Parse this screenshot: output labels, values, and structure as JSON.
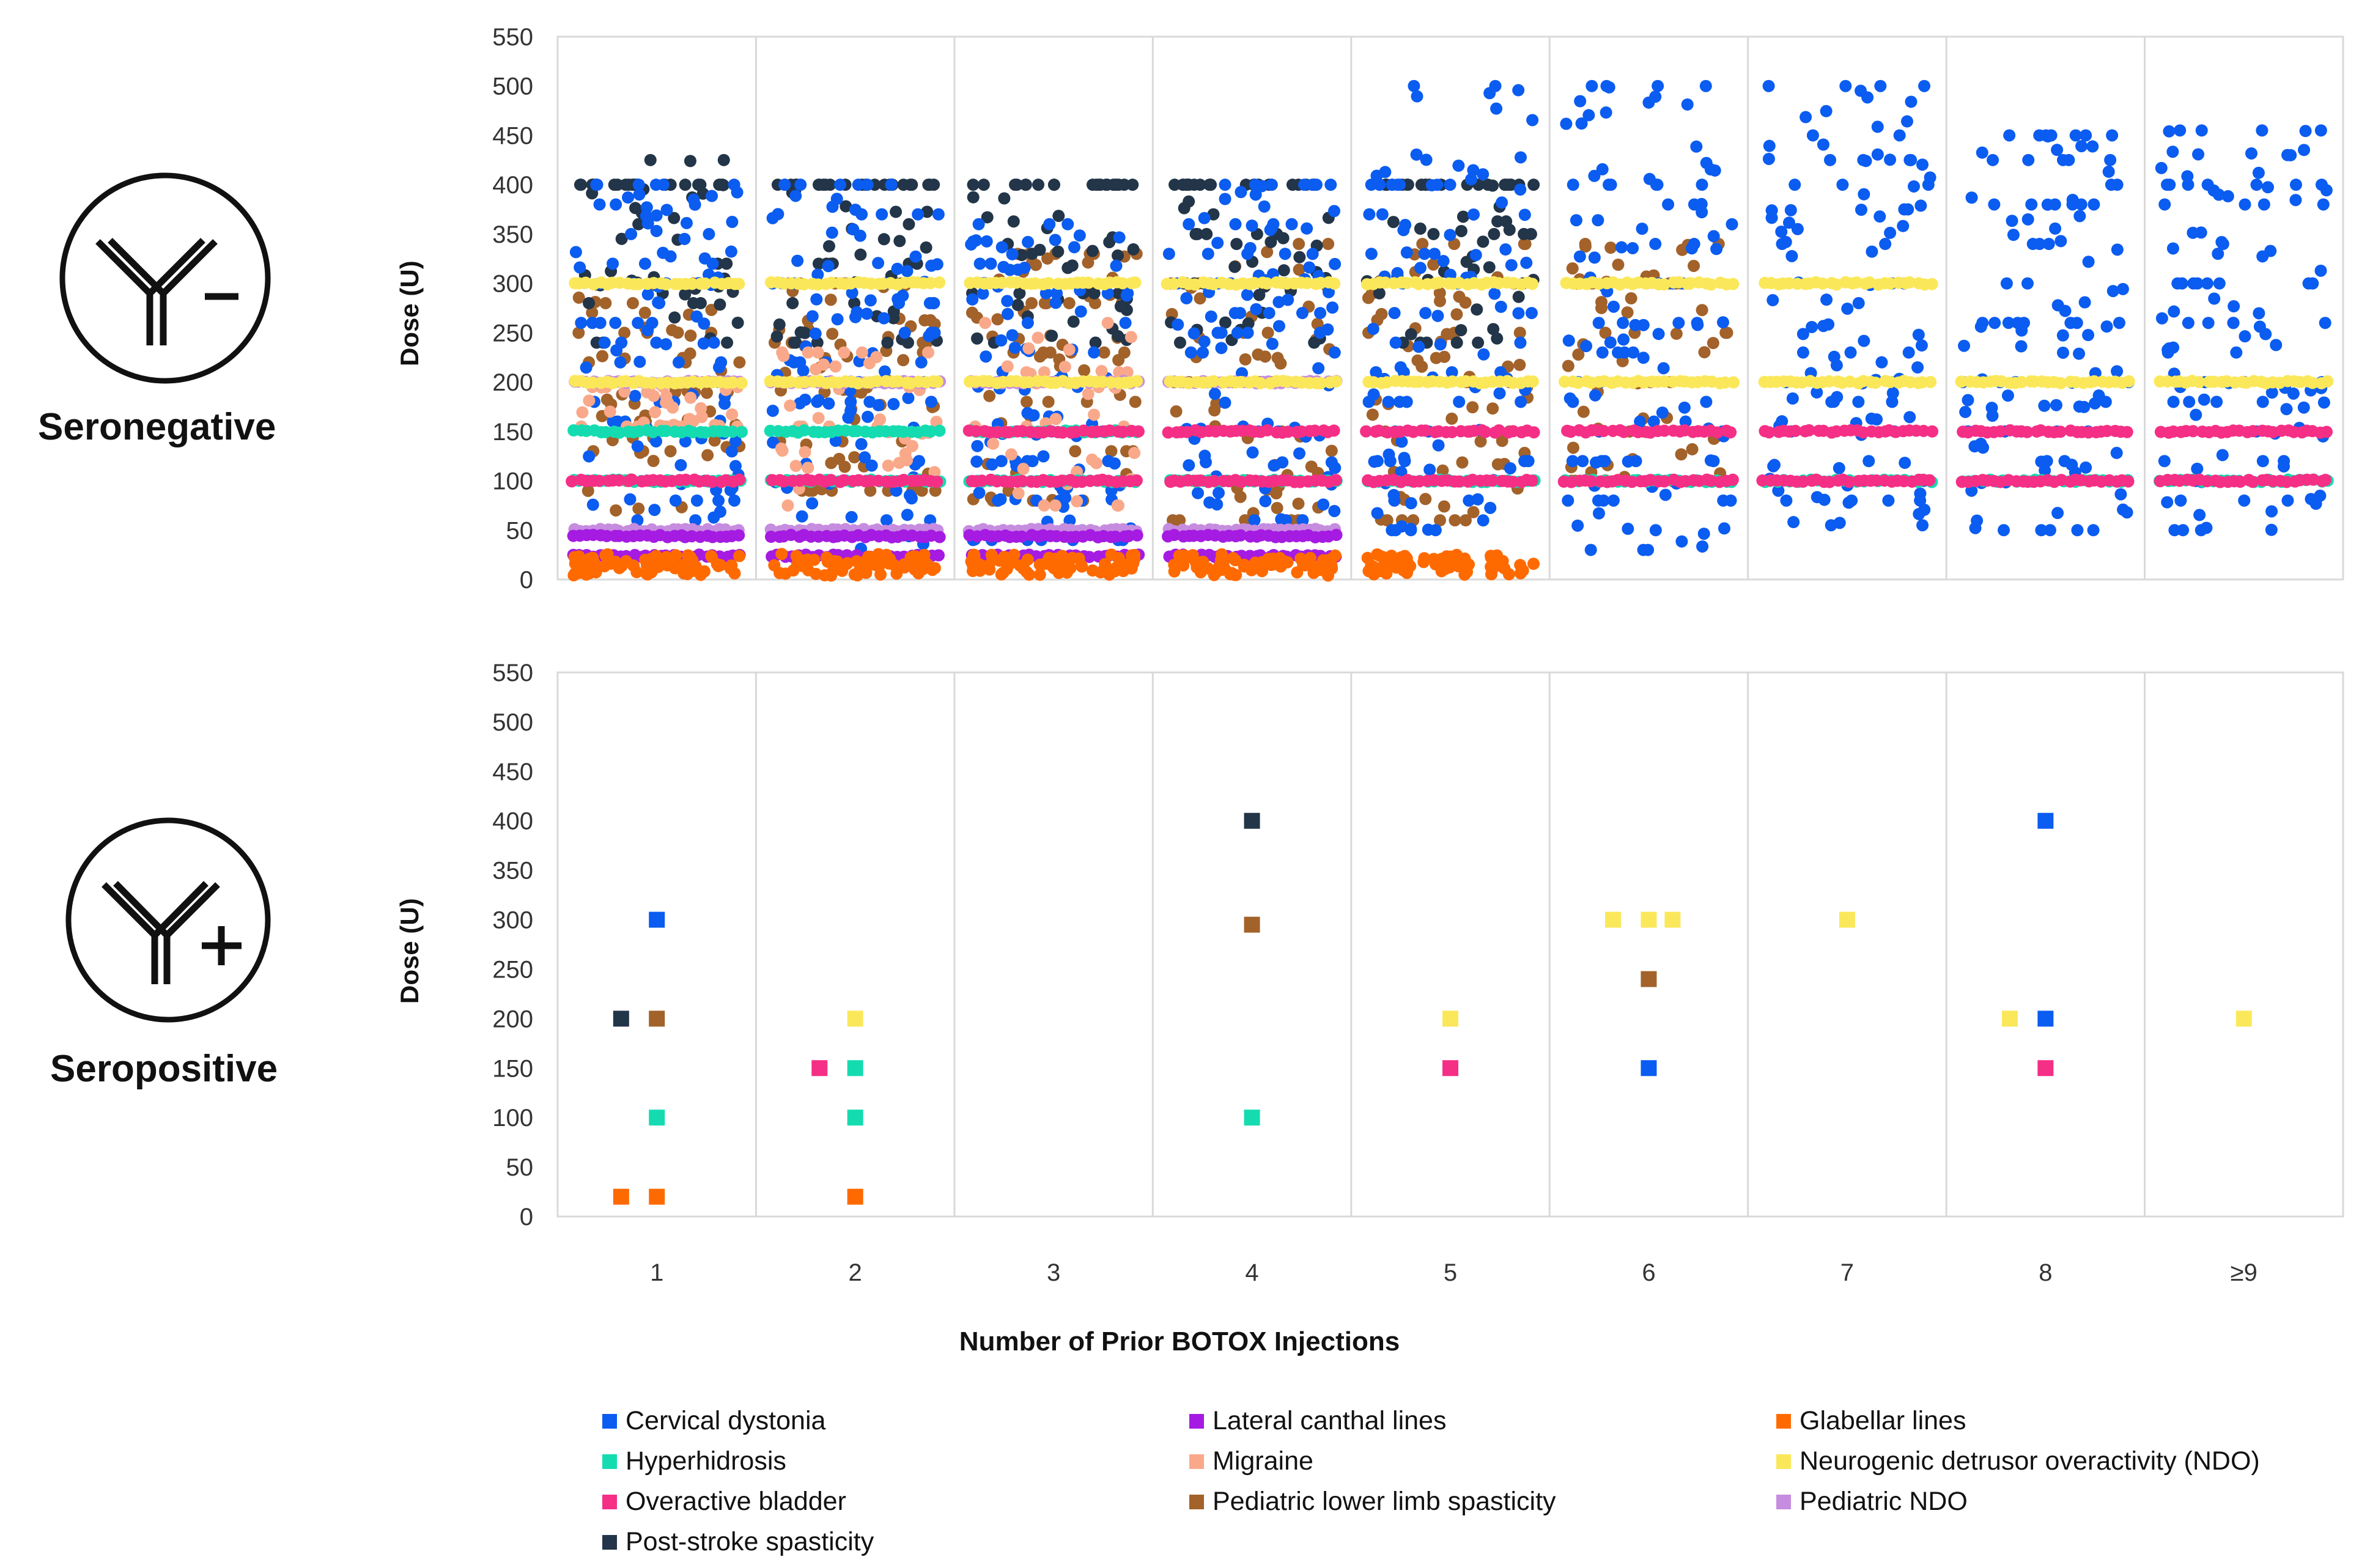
{
  "chart_data": {
    "type": "scatter",
    "xlabel": "Number of Prior BOTOX Injections",
    "ylabel": "Dose (U)",
    "categories": [
      "1",
      "2",
      "3",
      "4",
      "5",
      "6",
      "7",
      "8",
      "≥9"
    ],
    "ylim": [
      0,
      550
    ],
    "yticks": [
      0,
      50,
      100,
      150,
      200,
      250,
      300,
      350,
      400,
      450,
      500,
      550
    ],
    "colors": {
      "Cervical dystonia": "#0b5cf0",
      "Lateral canthal lines": "#a51be2",
      "Glabellar lines": "#ff6a00",
      "Hyperhidrosis": "#14dcb0",
      "Migraine": "#f9a98a",
      "Neurogenic detrusor overactivity (NDO)": "#fbe85a",
      "Overactive bladder": "#f52f85",
      "Pediatric lower limb spasticity": "#a2622a",
      "Pediatric NDO": "#c68cdf",
      "Post-stroke spasticity": "#233548"
    },
    "panels": [
      {
        "name": "Seronegative",
        "marker": "circle",
        "note": "Dense cloud of individual patient doses per condition; summarized as representative dose bands",
        "series": [
          {
            "name": "Cervical dystonia",
            "points": [
              {
                "x": "1",
                "doses": [
                  60,
                  80,
                  100,
                  120,
                  140,
                  160,
                  180,
                  200,
                  220,
                  240,
                  260,
                  280,
                  300,
                  320,
                  350,
                  380,
                  400
                ]
              },
              {
                "x": "2",
                "doses": [
                  30,
                  60,
                  90,
                  120,
                  150,
                  180,
                  200,
                  220,
                  250,
                  280,
                  300,
                  340,
                  370,
                  400
                ]
              },
              {
                "x": "3",
                "doses": [
                  40,
                  80,
                  120,
                  150,
                  180,
                  200,
                  230,
                  260,
                  290,
                  320,
                  360
                ]
              },
              {
                "x": "4",
                "doses": [
                  60,
                  100,
                  150,
                  200,
                  230,
                  250,
                  270,
                  300,
                  330,
                  360,
                  400
                ]
              },
              {
                "x": "5",
                "doses": [
                  50,
                  80,
                  120,
                  150,
                  180,
                  210,
                  240,
                  270,
                  300,
                  330,
                  370,
                  400,
                  500
                ]
              },
              {
                "x": "6",
                "doses": [
                  30,
                  50,
                  80,
                  120,
                  150,
                  160,
                  180,
                  200,
                  230,
                  260,
                  300,
                  340,
                  380,
                  400,
                  500
                ]
              },
              {
                "x": "7",
                "doses": [
                  55,
                  80,
                  120,
                  150,
                  180,
                  200,
                  230,
                  260,
                  300,
                  340,
                  375,
                  400,
                  425,
                  450,
                  500
                ]
              },
              {
                "x": "8",
                "doses": [
                  50,
                  80,
                  120,
                  150,
                  180,
                  200,
                  230,
                  260,
                  300,
                  340,
                  380,
                  400,
                  425,
                  450
                ]
              },
              {
                "x": "≥9",
                "doses": [
                  50,
                  80,
                  120,
                  150,
                  180,
                  200,
                  230,
                  260,
                  300,
                  340,
                  380,
                  400,
                  455
                ]
              }
            ]
          },
          {
            "name": "Lateral canthal lines",
            "points": [
              {
                "x": "1",
                "doses": [
                  24,
                  44
                ]
              },
              {
                "x": "2",
                "doses": [
                  24,
                  44
                ]
              },
              {
                "x": "3",
                "doses": [
                  24,
                  44
                ]
              },
              {
                "x": "4",
                "doses": [
                  24,
                  44
                ]
              }
            ]
          },
          {
            "name": "Glabellar lines",
            "points": [
              {
                "x": "1",
                "doses": [
                  10,
                  20
                ]
              },
              {
                "x": "2",
                "doses": [
                  10,
                  20
                ]
              },
              {
                "x": "3",
                "doses": [
                  10,
                  20
                ]
              },
              {
                "x": "4",
                "doses": [
                  10,
                  20
                ]
              },
              {
                "x": "5",
                "doses": [
                  10,
                  20
                ]
              }
            ]
          },
          {
            "name": "Hyperhidrosis",
            "points": [
              {
                "x": "1",
                "doses": [
                  100,
                  150
                ]
              },
              {
                "x": "2",
                "doses": [
                  100,
                  150
                ]
              },
              {
                "x": "3",
                "doses": [
                  100,
                  150
                ]
              },
              {
                "x": "4",
                "doses": [
                  100
                ]
              },
              {
                "x": "5",
                "doses": [
                  100
                ]
              },
              {
                "x": "6",
                "doses": [
                  100
                ]
              },
              {
                "x": "7",
                "doses": [
                  100
                ]
              },
              {
                "x": "8",
                "doses": [
                  100
                ]
              },
              {
                "x": "≥9",
                "doses": [
                  100
                ]
              }
            ]
          },
          {
            "name": "Migraine",
            "points": [
              {
                "x": "1",
                "doses": [
                  155,
                  195
                ]
              },
              {
                "x": "2",
                "doses": [
                  75,
                  155,
                  195,
                  230
                ]
              },
              {
                "x": "3",
                "doses": [
                  75,
                  155,
                  195,
                  210,
                  230,
                  260
                ]
              }
            ]
          },
          {
            "name": "Neurogenic detrusor overactivity (NDO)",
            "points": [
              {
                "x": "1",
                "doses": [
                  200,
                  300
                ]
              },
              {
                "x": "2",
                "doses": [
                  200,
                  300
                ]
              },
              {
                "x": "3",
                "doses": [
                  200,
                  300
                ]
              },
              {
                "x": "4",
                "doses": [
                  200,
                  300
                ]
              },
              {
                "x": "5",
                "doses": [
                  200,
                  300
                ]
              },
              {
                "x": "6",
                "doses": [
                  200,
                  300
                ]
              },
              {
                "x": "7",
                "doses": [
                  200,
                  300
                ]
              },
              {
                "x": "8",
                "doses": [
                  200
                ]
              },
              {
                "x": "≥9",
                "doses": [
                  200
                ]
              }
            ]
          },
          {
            "name": "Overactive bladder",
            "points": [
              {
                "x": "1",
                "doses": [
                  100
                ]
              },
              {
                "x": "2",
                "doses": [
                  100
                ]
              },
              {
                "x": "3",
                "doses": [
                  100,
                  150
                ]
              },
              {
                "x": "4",
                "doses": [
                  100,
                  150
                ]
              },
              {
                "x": "5",
                "doses": [
                  100,
                  150
                ]
              },
              {
                "x": "6",
                "doses": [
                  100,
                  150
                ]
              },
              {
                "x": "7",
                "doses": [
                  100,
                  150
                ]
              },
              {
                "x": "8",
                "doses": [
                  100,
                  150
                ]
              },
              {
                "x": "≥9",
                "doses": [
                  100,
                  150
                ]
              }
            ]
          },
          {
            "name": "Pediatric lower limb spasticity",
            "points": [
              {
                "x": "1",
                "doses": [
                  70,
                  100,
                  130,
                  160,
                  190,
                  220,
                  250,
                  280,
                  300
                ]
              },
              {
                "x": "2",
                "doses": [
                  90,
                  140,
                  190,
                  240,
                  300
                ]
              },
              {
                "x": "3",
                "doses": [
                  80,
                  130,
                  180,
                  230,
                  280,
                  330
                ]
              },
              {
                "x": "4",
                "doses": [
                  60,
                  100,
                  150,
                  200,
                  250,
                  300,
                  340
                ]
              },
              {
                "x": "5",
                "doses": [
                  60,
                  100,
                  150,
                  200,
                  250,
                  300,
                  340
                ]
              },
              {
                "x": "6",
                "doses": [
                  100,
                  150,
                  200,
                  250,
                  300,
                  340
                ]
              }
            ]
          },
          {
            "name": "Pediatric NDO",
            "points": [
              {
                "x": "1",
                "doses": [
                  50,
                  200
                ]
              },
              {
                "x": "2",
                "doses": [
                  50,
                  200
                ]
              },
              {
                "x": "3",
                "doses": [
                  50,
                  200
                ]
              },
              {
                "x": "4",
                "doses": [
                  50,
                  200
                ]
              }
            ]
          },
          {
            "name": "Post-stroke spasticity",
            "points": [
              {
                "x": "1",
                "doses": [
                  240,
                  280,
                  320,
                  360,
                  400,
                  425
                ]
              },
              {
                "x": "2",
                "doses": [
                  240,
                  280,
                  320,
                  360,
                  400
                ]
              },
              {
                "x": "3",
                "doses": [
                  240,
                  290,
                  340,
                  400
                ]
              },
              {
                "x": "4",
                "doses": [
                  240,
                  300,
                  350,
                  400
                ]
              },
              {
                "x": "5",
                "doses": [
                  240,
                  300,
                  350,
                  400
                ]
              }
            ]
          }
        ]
      },
      {
        "name": "Seropositive",
        "marker": "square",
        "series": [
          {
            "name": "Cervical dystonia",
            "points": [
              {
                "x": "1",
                "y": 300
              },
              {
                "x": "6",
                "y": 150
              },
              {
                "x": "8",
                "y": 400
              },
              {
                "x": "8",
                "y": 200
              }
            ]
          },
          {
            "name": "Glabellar lines",
            "points": [
              {
                "x": "1",
                "y": 20
              },
              {
                "x": "1",
                "y": 20
              },
              {
                "x": "2",
                "y": 20
              }
            ]
          },
          {
            "name": "Hyperhidrosis",
            "points": [
              {
                "x": "1",
                "y": 100
              },
              {
                "x": "2",
                "y": 150
              },
              {
                "x": "2",
                "y": 100
              },
              {
                "x": "4",
                "y": 100
              }
            ]
          },
          {
            "name": "Neurogenic detrusor overactivity (NDO)",
            "points": [
              {
                "x": "2",
                "y": 200
              },
              {
                "x": "5",
                "y": 200
              },
              {
                "x": "6",
                "y": 300
              },
              {
                "x": "6",
                "y": 300
              },
              {
                "x": "6",
                "y": 300
              },
              {
                "x": "7",
                "y": 300
              },
              {
                "x": "8",
                "y": 200
              },
              {
                "x": "≥9",
                "y": 200
              }
            ]
          },
          {
            "name": "Overactive bladder",
            "points": [
              {
                "x": "2",
                "y": 150
              },
              {
                "x": "5",
                "y": 150
              },
              {
                "x": "8",
                "y": 150
              }
            ]
          },
          {
            "name": "Pediatric lower limb spasticity",
            "points": [
              {
                "x": "1",
                "y": 200
              },
              {
                "x": "4",
                "y": 295
              },
              {
                "x": "6",
                "y": 240
              }
            ]
          },
          {
            "name": "Post-stroke spasticity",
            "points": [
              {
                "x": "1",
                "y": 200
              },
              {
                "x": "4",
                "y": 400
              }
            ]
          }
        ]
      }
    ],
    "legend": [
      "Cervical dystonia",
      "Lateral canthal lines",
      "Glabellar lines",
      "Hyperhidrosis",
      "Migraine",
      "Neurogenic detrusor overactivity (NDO)",
      "Overactive bladder",
      "Pediatric lower limb spasticity",
      "Pediatric NDO",
      "Post-stroke spasticity"
    ]
  },
  "labels": {
    "seronegative": "Seronegative",
    "seropositive": "Seropositive",
    "y_axis": "Dose (U)",
    "x_axis": "Number of Prior BOTOX Injections"
  },
  "legend_names": {
    "l0": "Cervical dystonia",
    "l1": "Lateral canthal lines",
    "l2": "Glabellar lines",
    "l3": "Hyperhidrosis",
    "l4": "Migraine",
    "l5": "Neurogenic detrusor overactivity (NDO)",
    "l6": "Overactive bladder",
    "l7": "Pediatric lower limb spasticity",
    "l8": "Pediatric NDO",
    "l9": "Post-stroke spasticity"
  }
}
